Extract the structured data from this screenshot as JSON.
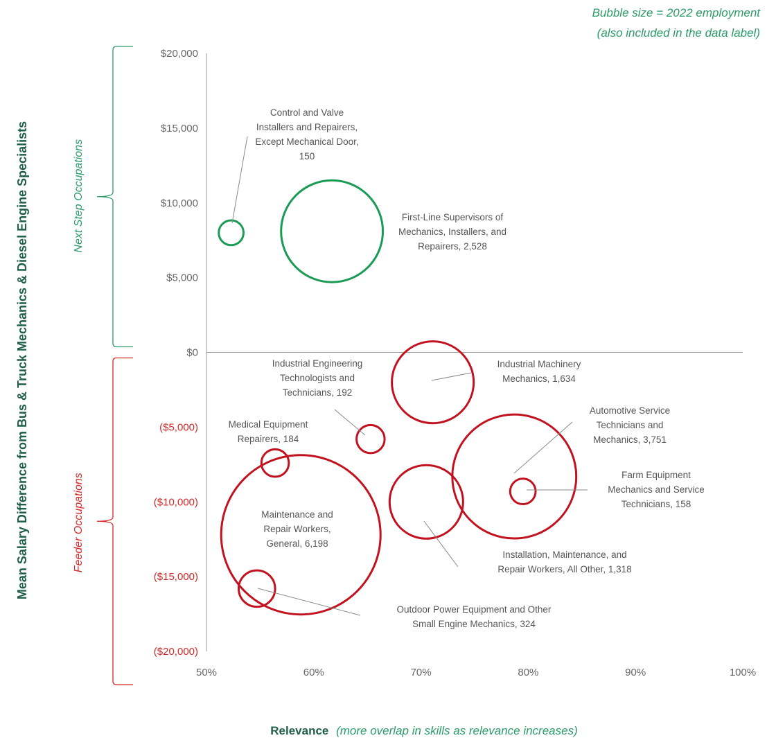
{
  "chart_data": {
    "type": "scatter",
    "title": "",
    "note": [
      "Bubble size = 2022 employment",
      "(also included in the data label)"
    ],
    "xlabel": "Relevance",
    "xlabel_note": "(more overlap in skills as relevance increases)",
    "ylabel": "Mean Salary Difference from Bus & Truck Mechanics & Diesel Engine Specialists",
    "xlim": [
      0.5,
      1.0
    ],
    "ylim": [
      -20000,
      20000
    ],
    "x_ticks": [
      "50%",
      "60%",
      "70%",
      "80%",
      "90%",
      "100%"
    ],
    "y_ticks": [
      "$20,000",
      "$15,000",
      "$10,000",
      "$5,000",
      "$0",
      "($5,000)",
      "($10,000)",
      "($15,000)",
      "($20,000)"
    ],
    "bubble_size_meaning": "2022 employment",
    "groups": [
      {
        "name": "Next Step Occupations",
        "range": [
          0,
          20000
        ],
        "color": "#2a9a68"
      },
      {
        "name": "Feeder Occupations",
        "range": [
          -20000,
          0
        ],
        "color": "#d62828"
      }
    ],
    "colors": {
      "next_step": "#1a9a55",
      "feeder": "#c1121f",
      "axis": "#999999"
    },
    "points": [
      {
        "group": "next_step",
        "x": 0.523,
        "y": 8000,
        "size": 150,
        "label": [
          "Control and Valve",
          "Installers and Repairers,",
          "Except Mechanical Door,",
          "150"
        ]
      },
      {
        "group": "next_step",
        "x": 0.617,
        "y": 8100,
        "size": 2528,
        "label": [
          "First-Line Supervisors of",
          "Mechanics, Installers, and",
          "Repairers, 2,528"
        ]
      },
      {
        "group": "feeder",
        "x": 0.711,
        "y": -2000,
        "size": 1634,
        "label": [
          "Industrial Machinery",
          "Mechanics, 1,634"
        ]
      },
      {
        "group": "feeder",
        "x": 0.653,
        "y": -5800,
        "size": 192,
        "label": [
          "Industrial Engineering",
          "Technologists and",
          "Technicians, 192"
        ]
      },
      {
        "group": "feeder",
        "x": 0.564,
        "y": -7400,
        "size": 184,
        "label": [
          "Medical Equipment",
          "Repairers, 184"
        ]
      },
      {
        "group": "feeder",
        "x": 0.787,
        "y": -8300,
        "size": 3751,
        "label": [
          "Automotive Service",
          "Technicians and",
          "Mechanics, 3,751"
        ]
      },
      {
        "group": "feeder",
        "x": 0.795,
        "y": -9300,
        "size": 158,
        "label": [
          "Farm Equipment",
          "Mechanics and Service",
          "Technicians, 158"
        ]
      },
      {
        "group": "feeder",
        "x": 0.705,
        "y": -10000,
        "size": 1318,
        "label": [
          "Installation, Maintenance, and",
          "Repair Workers, All Other, 1,318"
        ]
      },
      {
        "group": "feeder",
        "x": 0.588,
        "y": -12200,
        "size": 6198,
        "label": [
          "Maintenance and",
          "Repair Workers,",
          "General, 6,198"
        ]
      },
      {
        "group": "feeder",
        "x": 0.547,
        "y": -15800,
        "size": 324,
        "label": [
          "Outdoor Power Equipment and Other",
          "Small Engine Mechanics, 324"
        ]
      }
    ]
  }
}
